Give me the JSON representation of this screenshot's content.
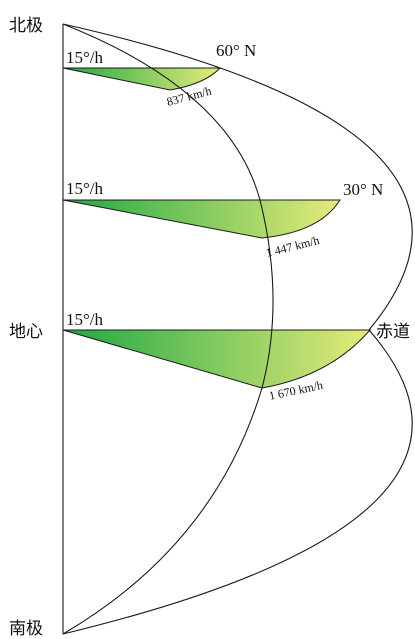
{
  "labels": {
    "north_pole": "北极",
    "earth_center": "地心",
    "south_pole": "南极",
    "equator": "赤道",
    "lat_60": "60° N",
    "lat_30": "30° N"
  },
  "bands": [
    {
      "angular_speed": "15°/h",
      "linear_speed": "837 km/h"
    },
    {
      "angular_speed": "15°/h",
      "linear_speed": "1 447 km/h"
    },
    {
      "angular_speed": "15°/h",
      "linear_speed": "1 670 km/h"
    }
  ],
  "colors": {
    "gradient_start": "#1fa845",
    "gradient_end": "#e6eb7a",
    "outline": "#1a1a1a"
  }
}
